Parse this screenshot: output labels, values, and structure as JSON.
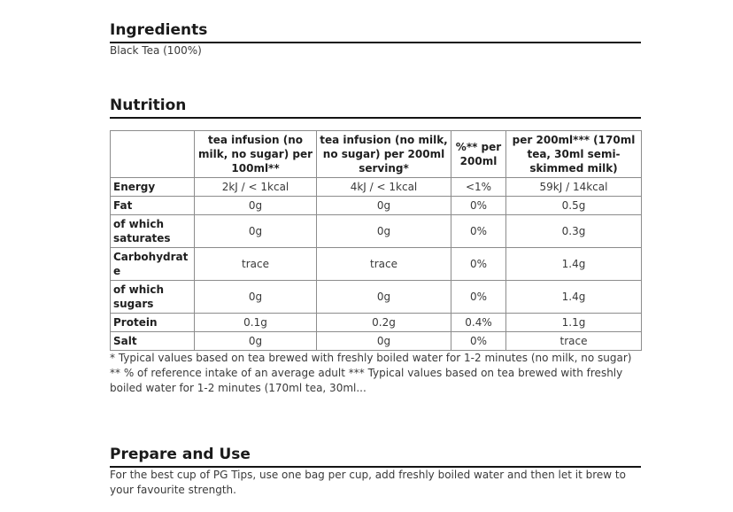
{
  "theme": {
    "background": "#ffffff",
    "heading_color": "#1a1a1a",
    "heading_underline_color": "#141414",
    "body_text_color": "#3a3a3a",
    "table_border_color": "#8c8c8c"
  },
  "ingredients": {
    "heading": "Ingredients",
    "body": "Black Tea (100%)"
  },
  "nutrition": {
    "heading": "Nutrition",
    "table": {
      "columns": [
        "",
        "tea infusion (no milk, no sugar) per 100ml**",
        "tea infusion (no milk, no sugar) per 200ml serving*",
        "%** per 200ml",
        "per 200ml*** (170ml tea, 30ml semi-skimmed milk)"
      ],
      "rows": [
        {
          "label": "Energy",
          "values": [
            "2kJ / < 1kcal",
            "4kJ / < 1kcal",
            "<1%",
            "59kJ / 14kcal"
          ]
        },
        {
          "label": "Fat",
          "values": [
            "0g",
            "0g",
            "0%",
            "0.5g"
          ]
        },
        {
          "label": "of which saturates",
          "values": [
            "0g",
            "0g",
            "0%",
            "0.3g"
          ]
        },
        {
          "label": "Carbohydrate",
          "values": [
            "trace",
            "trace",
            "0%",
            "1.4g"
          ]
        },
        {
          "label": "of which sugars",
          "values": [
            "0g",
            "0g",
            "0%",
            "1.4g"
          ]
        },
        {
          "label": "Protein",
          "values": [
            "0.1g",
            "0.2g",
            "0.4%",
            "1.1g"
          ]
        },
        {
          "label": "Salt",
          "values": [
            "0g",
            "0g",
            "0%",
            "trace"
          ]
        }
      ]
    },
    "footnote": "* Typical values based on tea brewed with freshly boiled water for 1-2 minutes (no milk, no sugar) ** % of reference intake of an average adult *** Typical values based on tea brewed with freshly boiled water for 1-2 minutes (170ml tea, 30ml..."
  },
  "prepare": {
    "heading": "Prepare and Use",
    "body": "For the best cup of PG Tips, use one bag per cup, add freshly boiled water and then let it brew to your favourite strength."
  }
}
